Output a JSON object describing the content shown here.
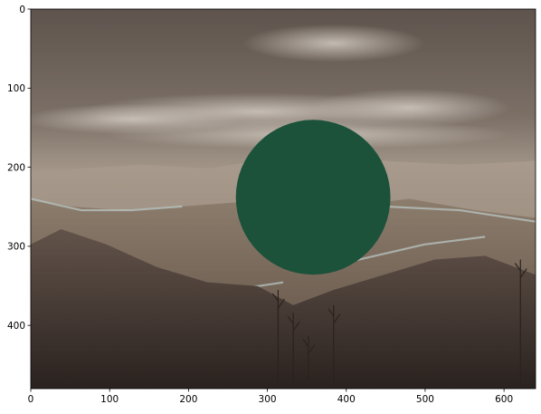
{
  "plot": {
    "x_ticks": [
      0,
      100,
      200,
      300,
      400,
      500,
      600
    ],
    "y_ticks": [
      0,
      100,
      200,
      300,
      400
    ],
    "x_range": [
      0,
      640
    ],
    "y_range": [
      0,
      480
    ],
    "y_inverted": true
  },
  "image": {
    "description_key": "mountain-landscape-photo",
    "colors": {
      "sky_top": "#6f635a",
      "sky_mid": "#8a7c70",
      "haze": "#b5aba1",
      "mountain_far": "#9a8c7e",
      "mountain_mid": "#7b6b5c",
      "mountain_near": "#4f4138",
      "foreground": "#2f2723",
      "snow": "#b8c6c3",
      "snow_shadow": "#7f9390"
    }
  },
  "overlay": {
    "shape": "circle",
    "center": [
      358,
      238
    ],
    "radius": 98,
    "color": "#1b5239"
  }
}
